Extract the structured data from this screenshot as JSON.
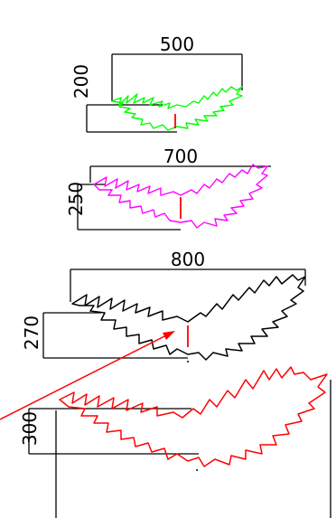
{
  "colors": {
    "background": "#ffffff",
    "dimension_line": "#000000",
    "green_shape": "#00ff00",
    "magenta_shape": "#ff00ff",
    "black_shape": "#000000",
    "red_shape": "#ff0000",
    "red_marker": "#ff0000"
  },
  "figures": [
    {
      "width_label": "500",
      "height_label": "200"
    },
    {
      "width_label": "700",
      "height_label": "250"
    },
    {
      "width_label": "800",
      "height_label": "270"
    },
    {
      "height_label": "300"
    }
  ]
}
